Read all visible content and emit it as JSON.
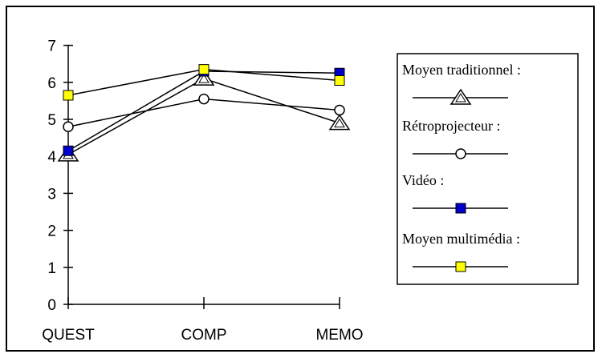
{
  "chart_data": {
    "type": "line",
    "categories": [
      "QUEST",
      "COMP",
      "MEMO"
    ],
    "ylim": [
      0,
      7
    ],
    "yticks": [
      0,
      1,
      2,
      3,
      4,
      5,
      6,
      7
    ],
    "grid": false,
    "legend_position": "right",
    "series": [
      {
        "name": "Moyen traditionnel :",
        "values": [
          4.05,
          6.1,
          4.9
        ],
        "marker": "triangle-open",
        "color": "#000000"
      },
      {
        "name": "Rétroprojecteur :",
        "values": [
          4.8,
          5.55,
          5.25
        ],
        "marker": "circle-open",
        "color": "#000000"
      },
      {
        "name": "Vidéo :",
        "values": [
          4.15,
          6.3,
          6.25
        ],
        "marker": "square",
        "color": "#0000cc"
      },
      {
        "name": "Moyen multimédia :",
        "values": [
          5.65,
          6.35,
          6.05
        ],
        "marker": "square",
        "color": "#ffff00"
      }
    ]
  }
}
